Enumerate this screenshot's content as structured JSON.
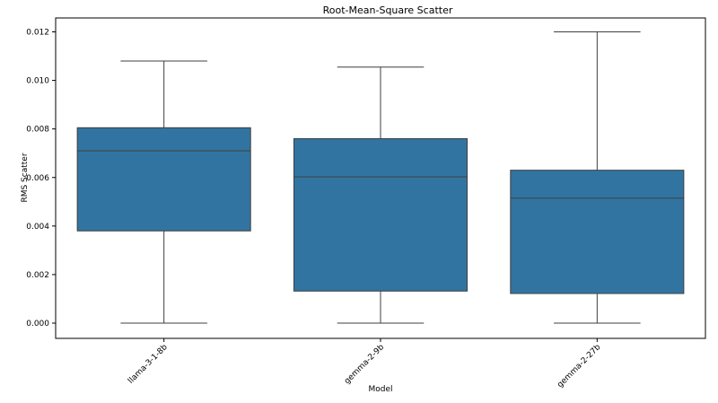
{
  "chart_data": {
    "type": "box",
    "title": "Root-Mean-Square Scatter",
    "xlabel": "Model",
    "ylabel": "RMS Scatter",
    "categories": [
      "llama-3-1-8b",
      "gemma-2-9b",
      "gemma-2-27b"
    ],
    "boxes": [
      {
        "category": "llama-3-1-8b",
        "whisker_low": 0.0,
        "q1": 0.0038,
        "median": 0.0071,
        "q3": 0.00805,
        "whisker_high": 0.0108
      },
      {
        "category": "gemma-2-9b",
        "whisker_low": 0.0,
        "q1": 0.00132,
        "median": 0.00603,
        "q3": 0.0076,
        "whisker_high": 0.01055
      },
      {
        "category": "gemma-2-27b",
        "whisker_low": 0.0,
        "q1": 0.00122,
        "median": 0.00515,
        "q3": 0.0063,
        "whisker_high": 0.012
      }
    ],
    "ylim": [
      -0.0006,
      0.0126
    ],
    "yticks": [
      0.0,
      0.002,
      0.004,
      0.006,
      0.008,
      0.01,
      0.012
    ],
    "ytick_labels": [
      "0.000",
      "0.002",
      "0.004",
      "0.006",
      "0.008",
      "0.010",
      "0.012"
    ],
    "grid": false,
    "box_color": "#3274a1",
    "line_color": "#3f3f3f"
  }
}
